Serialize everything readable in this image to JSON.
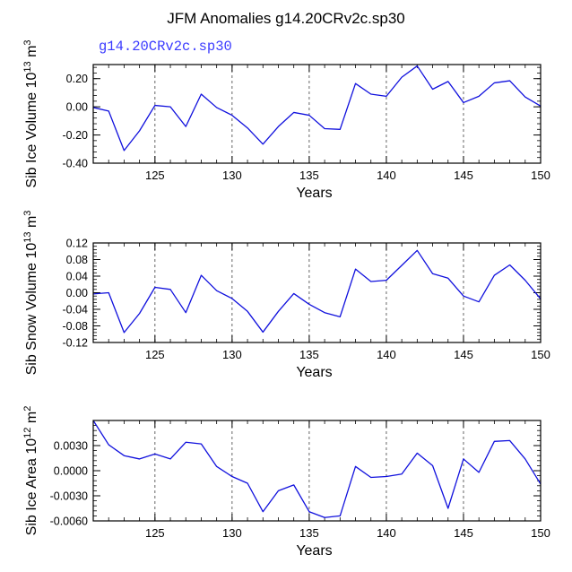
{
  "title": "JFM Anomalies g14.20CRv2c.sp30",
  "subtitle": "g14.20CRv2c.sp30",
  "colors": {
    "line": "#1010dd",
    "subtitle": "#3b3bff",
    "axis": "#000000",
    "grid": "#555555"
  },
  "chart_data": [
    {
      "type": "line",
      "name": "sib-ice-volume",
      "ylabel_main": "Sib Ice Volume 10",
      "ylabel_exp": "13",
      "ylabel_unit": " m",
      "ylabel_unit_exp": "3",
      "xlabel": "Years",
      "xlim": [
        121,
        150
      ],
      "ylim": [
        -0.4,
        0.3
      ],
      "yticks": [
        0.2,
        0.0,
        -0.2,
        -0.4
      ],
      "ytick_labels": [
        "0.20",
        "0.00",
        "-0.20",
        "-0.40"
      ],
      "xticks": [
        125,
        130,
        135,
        140,
        145,
        150
      ],
      "xtick_labels": [
        "125",
        "130",
        "135",
        "140",
        "145",
        "150"
      ],
      "gridlines_x": [
        125,
        130,
        135,
        140,
        145
      ],
      "x": [
        121,
        122,
        123,
        124,
        125,
        126,
        127,
        128,
        129,
        130,
        131,
        132,
        133,
        134,
        135,
        136,
        137,
        138,
        139,
        140,
        141,
        142,
        143,
        144,
        145,
        146,
        147,
        148,
        149,
        150
      ],
      "values": [
        -0.005,
        -0.03,
        -0.31,
        -0.17,
        0.01,
        0.0,
        -0.14,
        0.09,
        -0.005,
        -0.06,
        -0.15,
        -0.265,
        -0.14,
        -0.04,
        -0.06,
        -0.155,
        -0.16,
        0.165,
        0.09,
        0.075,
        0.21,
        0.29,
        0.125,
        0.18,
        0.03,
        0.075,
        0.17,
        0.185,
        0.07,
        0.005
      ]
    },
    {
      "type": "line",
      "name": "sib-snow-volume",
      "ylabel_main": "Sib Snow Volume 10",
      "ylabel_exp": "13",
      "ylabel_unit": " m",
      "ylabel_unit_exp": "3",
      "xlabel": "Years",
      "xlim": [
        121,
        150
      ],
      "ylim": [
        -0.12,
        0.12
      ],
      "yticks": [
        0.12,
        0.08,
        0.04,
        0.0,
        -0.04,
        -0.08,
        -0.12
      ],
      "ytick_labels": [
        "0.12",
        "0.08",
        "0.04",
        "0.00",
        "-0.04",
        "-0.08",
        "-0.12"
      ],
      "xticks": [
        125,
        130,
        135,
        140,
        145,
        150
      ],
      "xtick_labels": [
        "125",
        "130",
        "135",
        "140",
        "145",
        "150"
      ],
      "gridlines_x": [
        125,
        130,
        135,
        140,
        145
      ],
      "x": [
        121,
        122,
        123,
        124,
        125,
        126,
        127,
        128,
        129,
        130,
        131,
        132,
        133,
        134,
        135,
        136,
        137,
        138,
        139,
        140,
        141,
        142,
        143,
        144,
        145,
        146,
        147,
        148,
        149,
        150
      ],
      "values": [
        -0.003,
        0.0,
        -0.096,
        -0.05,
        0.013,
        0.008,
        -0.048,
        0.042,
        0.005,
        -0.014,
        -0.045,
        -0.095,
        -0.045,
        -0.002,
        -0.028,
        -0.048,
        -0.058,
        0.057,
        0.027,
        0.03,
        0.066,
        0.102,
        0.046,
        0.035,
        -0.008,
        -0.022,
        0.042,
        0.067,
        0.03,
        -0.015
      ]
    },
    {
      "type": "line",
      "name": "sib-ice-area",
      "ylabel_main": "Sib Ice Area 10",
      "ylabel_exp": "12",
      "ylabel_unit": " m",
      "ylabel_unit_exp": "2",
      "xlabel": "Years",
      "xlim": [
        121,
        150
      ],
      "ylim": [
        -0.006,
        0.006
      ],
      "yticks": [
        0.003,
        0.0,
        -0.003,
        -0.006
      ],
      "ytick_labels": [
        "0.0030",
        "0.0000",
        "-0.0030",
        "-0.0060"
      ],
      "xticks": [
        125,
        130,
        135,
        140,
        145,
        150
      ],
      "xtick_labels": [
        "125",
        "130",
        "135",
        "140",
        "145",
        "150"
      ],
      "gridlines_x": [
        125,
        130,
        135,
        140,
        145
      ],
      "x": [
        121,
        122,
        123,
        124,
        125,
        126,
        127,
        128,
        129,
        130,
        131,
        132,
        133,
        134,
        135,
        136,
        137,
        138,
        139,
        140,
        141,
        142,
        143,
        144,
        145,
        146,
        147,
        148,
        149,
        150
      ],
      "values": [
        0.006,
        0.0031,
        0.0018,
        0.0014,
        0.002,
        0.0014,
        0.0034,
        0.0032,
        0.0005,
        -0.0007,
        -0.0015,
        -0.0049,
        -0.0024,
        -0.0017,
        -0.0049,
        -0.0056,
        -0.0054,
        0.0005,
        -0.0008,
        -0.0007,
        -0.0004,
        0.0021,
        0.0006,
        -0.0045,
        0.0014,
        -0.0002,
        0.0035,
        0.0036,
        0.0014,
        -0.0016
      ]
    }
  ]
}
